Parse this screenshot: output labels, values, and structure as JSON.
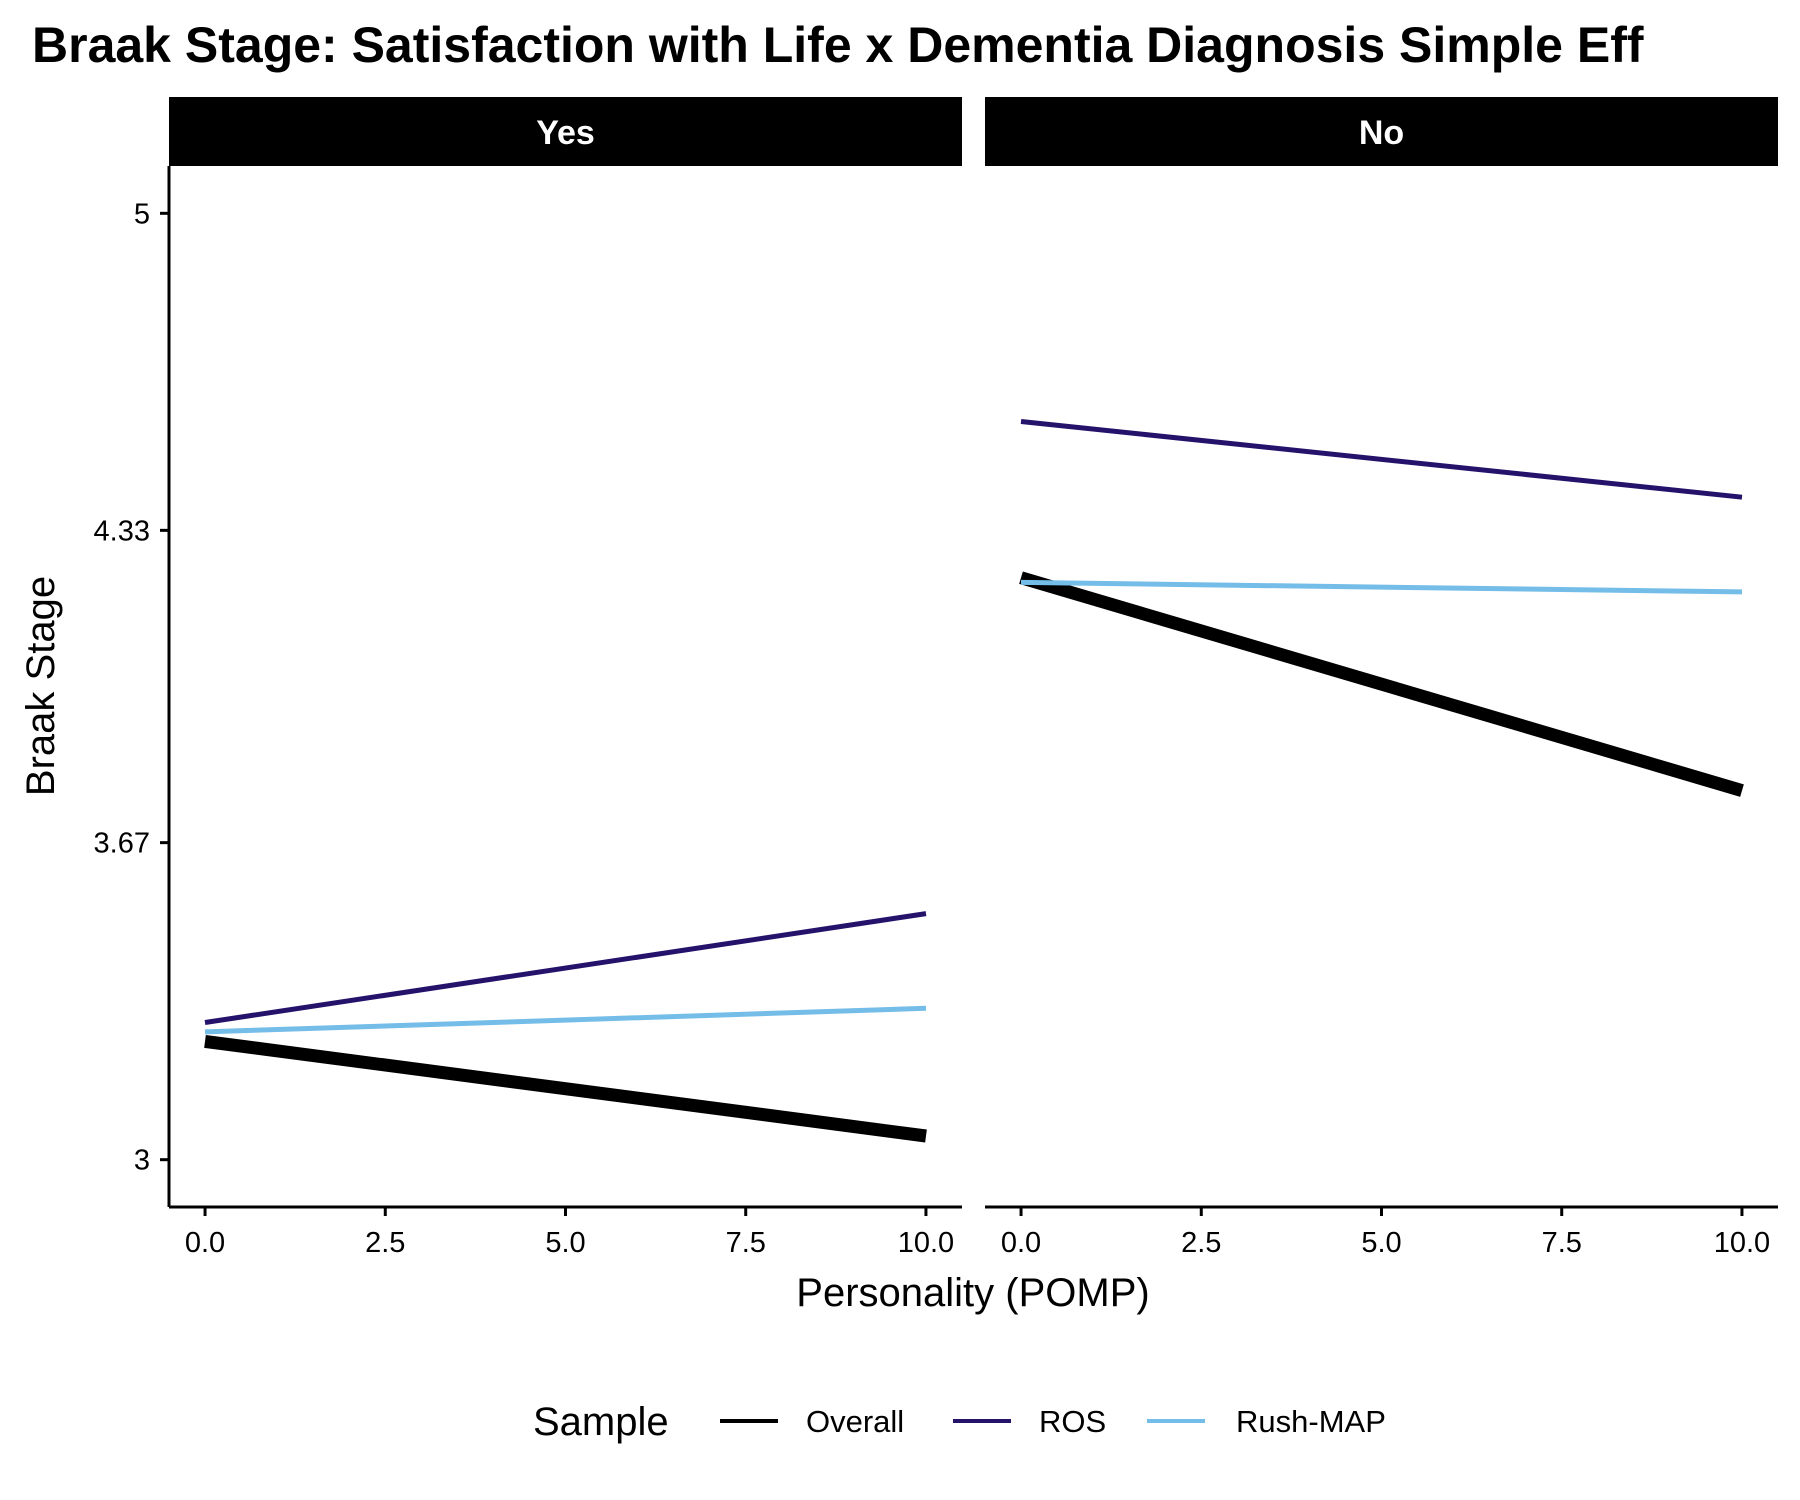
{
  "chart_data": {
    "type": "line",
    "title": "Braak Stage: Satisfaction with Life x Dementia Diagnosis Simple Eff",
    "xlabel": "Personality (POMP)",
    "ylabel": "Braak Stage",
    "xlim": [
      -0.5,
      10.5
    ],
    "ylim": [
      2.9,
      5.1
    ],
    "x_ticks": [
      0,
      2.5,
      5,
      7.5,
      10
    ],
    "x_tick_labels": [
      "0.0",
      "2.5",
      "5.0",
      "7.5",
      "10.0"
    ],
    "y_ticks": [
      3,
      3.67,
      4.33,
      5
    ],
    "y_tick_labels": [
      "3",
      "3.67",
      "4.33",
      "5"
    ],
    "grid": false,
    "legend": {
      "title": "Sample",
      "position": "bottom",
      "entries": [
        "Overall",
        "ROS",
        "Rush-MAP"
      ]
    },
    "series_styles": {
      "Overall": {
        "color": "#000000",
        "width": "thick"
      },
      "ROS": {
        "color": "#24126b",
        "width": "normal"
      },
      "Rush-MAP": {
        "color": "#74bde8",
        "width": "normal"
      }
    },
    "panels": [
      {
        "label": "Yes",
        "series": [
          {
            "name": "Overall",
            "x": [
              0,
              10
            ],
            "y": [
              3.25,
              3.05
            ]
          },
          {
            "name": "ROS",
            "x": [
              0,
              10
            ],
            "y": [
              3.29,
              3.52
            ]
          },
          {
            "name": "Rush-MAP",
            "x": [
              0,
              10
            ],
            "y": [
              3.27,
              3.32
            ]
          }
        ]
      },
      {
        "label": "No",
        "series": [
          {
            "name": "Overall",
            "x": [
              0,
              10
            ],
            "y": [
              4.23,
              3.78
            ]
          },
          {
            "name": "ROS",
            "x": [
              0,
              10
            ],
            "y": [
              4.56,
              4.4
            ]
          },
          {
            "name": "Rush-MAP",
            "x": [
              0,
              10
            ],
            "y": [
              4.22,
              4.2
            ]
          }
        ]
      }
    ]
  }
}
